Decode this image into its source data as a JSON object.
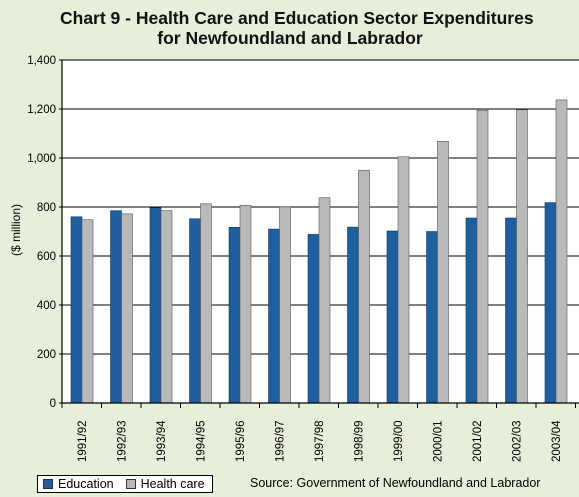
{
  "chart_data": {
    "type": "bar",
    "title_lines": [
      "Chart 9 - Health Care and Education Sector Expenditures",
      "for Newfoundland and Labrador"
    ],
    "ylabel": "($ million)",
    "xlabel": "",
    "ylim": [
      0,
      1400
    ],
    "yticks": [
      0,
      200,
      400,
      600,
      800,
      1000,
      1200,
      1400
    ],
    "ytick_labels": [
      "0",
      "200",
      "400",
      "600",
      "800",
      "1,000",
      "1,200",
      "1,400"
    ],
    "grid": true,
    "legend_position": "bottom-left",
    "categories": [
      "1991/92",
      "1992/93",
      "1993/94",
      "1994/95",
      "1995/96",
      "1996/97",
      "1997/98",
      "1998/99",
      "1999/00",
      "2000/01",
      "2001/02",
      "2002/03",
      "2003/04"
    ],
    "series": [
      {
        "name": "Education",
        "color": "#1f5fa0",
        "values": [
          760,
          785,
          797,
          752,
          717,
          710,
          688,
          718,
          702,
          700,
          755,
          755,
          818
        ]
      },
      {
        "name": "Health care",
        "color": "#b9b9b9",
        "values": [
          748,
          772,
          785,
          813,
          807,
          800,
          838,
          950,
          1005,
          1068,
          1195,
          1197,
          1237
        ]
      }
    ]
  },
  "source_text": "Source: Government of Newfoundland and Labrador",
  "colors": {
    "background": "#e6efd9",
    "plot_background": "#ffffff",
    "education": "#1f5fa0",
    "health_care": "#b9b9b9"
  }
}
